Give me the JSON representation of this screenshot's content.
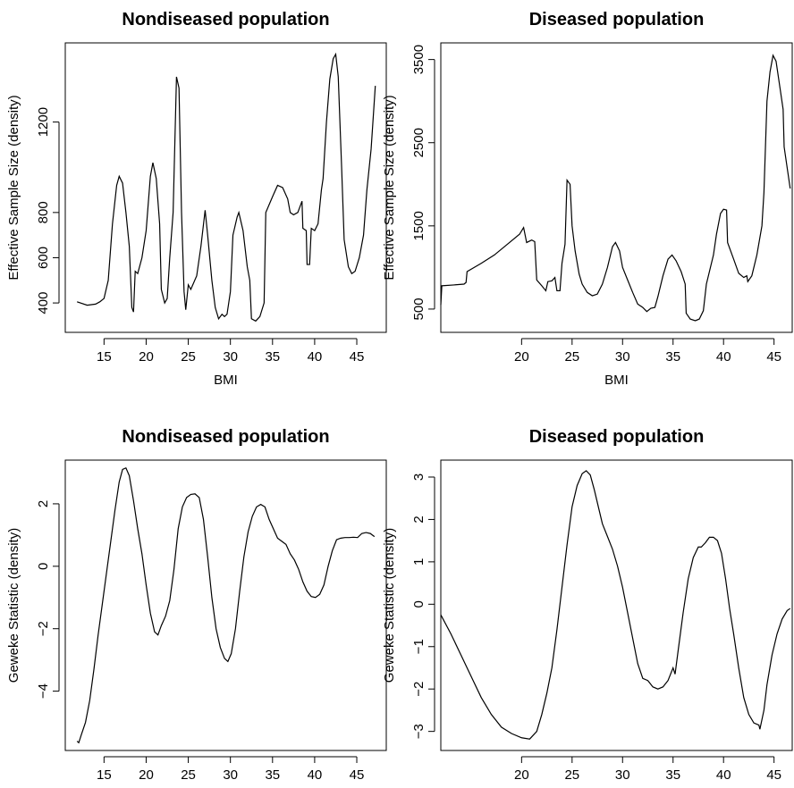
{
  "chart_data": [
    {
      "type": "line",
      "title": "Nondiseased population",
      "xlabel": "BMI",
      "ylabel": "Effective Sample Size (density)",
      "xlim": [
        10.4,
        48.5
      ],
      "ylim": [
        270,
        1550
      ],
      "xticks": [
        15,
        20,
        25,
        30,
        35,
        40,
        45
      ],
      "yticks": [
        400,
        600,
        800,
        1200
      ],
      "x": [
        11.8,
        13,
        14,
        14.5,
        15,
        15.5,
        16,
        16.5,
        16.8,
        17.2,
        17.6,
        18,
        18.3,
        18.5,
        18.7,
        19,
        19.5,
        20,
        20.5,
        20.8,
        21.2,
        21.6,
        21.8,
        22.2,
        22.5,
        22.8,
        23.2,
        23.6,
        23.9,
        24.2,
        24.5,
        24.7,
        25,
        25.3,
        26,
        26.5,
        27,
        27.3,
        27.8,
        28.2,
        28.6,
        29,
        29.3,
        29.6,
        30,
        30.3,
        30.8,
        31,
        31.5,
        32,
        32.3,
        32.5,
        33,
        33.5,
        34,
        34.2,
        35,
        35.6,
        36.2,
        36.8,
        37.1,
        37.5,
        38,
        38.5,
        38.6,
        39,
        39.1,
        39.4,
        39.6,
        40,
        40.4,
        40.8,
        41,
        41.4,
        41.8,
        42.2,
        42.5,
        42.8,
        43.2,
        43.5,
        44,
        44.4,
        44.8,
        45.3,
        45.8,
        46.2,
        46.7,
        47.2
      ],
      "series": [
        {
          "color": "#000000",
          "values": [
            405,
            390,
            395,
            405,
            420,
            500,
            750,
            920,
            960,
            930,
            800,
            650,
            380,
            360,
            540,
            530,
            600,
            720,
            960,
            1020,
            950,
            750,
            460,
            400,
            420,
            600,
            800,
            1400,
            1350,
            800,
            450,
            370,
            480,
            460,
            520,
            650,
            810,
            700,
            500,
            380,
            330,
            350,
            340,
            350,
            450,
            700,
            780,
            800,
            720,
            560,
            500,
            330,
            320,
            340,
            400,
            800,
            870,
            920,
            910,
            860,
            800,
            790,
            800,
            850,
            730,
            720,
            570,
            570,
            730,
            720,
            750,
            900,
            950,
            1200,
            1390,
            1480,
            1500,
            1400,
            1000,
            680,
            560,
            530,
            540,
            600,
            700,
            900,
            1080,
            1360
          ]
        }
      ]
    },
    {
      "type": "line",
      "title": "Diseased population",
      "xlabel": "BMI",
      "ylabel": "Effective Sample Size (density)",
      "xlim": [
        12,
        46.8
      ],
      "ylim": [
        220,
        3700
      ],
      "xticks": [
        20,
        25,
        30,
        35,
        40,
        45
      ],
      "yticks": [
        500,
        1500,
        2500,
        3500
      ],
      "x": [
        12,
        12.1,
        13.3,
        14.3,
        14.5,
        14.6,
        16,
        17.3,
        18.6,
        19.8,
        20.2,
        20.5,
        21,
        21.3,
        21.5,
        22,
        22.4,
        22.6,
        23,
        23.3,
        23.5,
        23.8,
        24,
        24.3,
        24.5,
        24.8,
        25,
        25.3,
        25.7,
        26,
        26.5,
        27,
        27.5,
        28,
        28.5,
        29,
        29.3,
        29.7,
        30,
        30.5,
        31,
        31.5,
        32,
        32.4,
        32.8,
        33.2,
        33.5,
        34,
        34.5,
        34.9,
        35.3,
        35.8,
        36.2,
        36.3,
        36.7,
        37.2,
        37.6,
        38,
        38.3,
        38.6,
        39,
        39.3,
        39.7,
        40,
        40.3,
        40.4,
        41,
        41.5,
        42,
        42.3,
        42.4,
        42.8,
        43.3,
        43.8,
        44,
        44.3,
        44.6,
        44.9,
        45.2,
        45.6,
        45.9,
        46,
        46.3,
        46.6
      ],
      "series": [
        {
          "color": "#000000",
          "values": [
            550,
            780,
            790,
            800,
            820,
            950,
            1050,
            1150,
            1280,
            1400,
            1480,
            1300,
            1330,
            1310,
            850,
            780,
            720,
            830,
            840,
            880,
            720,
            720,
            1050,
            1280,
            2050,
            2000,
            1500,
            1200,
            920,
            800,
            700,
            660,
            680,
            800,
            1000,
            1250,
            1300,
            1200,
            1000,
            850,
            700,
            560,
            520,
            470,
            510,
            520,
            650,
            900,
            1100,
            1150,
            1080,
            950,
            800,
            450,
            380,
            360,
            380,
            480,
            800,
            950,
            1150,
            1400,
            1650,
            1700,
            1690,
            1300,
            1100,
            930,
            880,
            900,
            830,
            900,
            1150,
            1500,
            1900,
            3000,
            3350,
            3550,
            3480,
            3150,
            2900,
            2450,
            2200,
            1950
          ]
        }
      ]
    },
    {
      "type": "line",
      "title": "Nondiseased population",
      "xlabel": "BMI",
      "ylabel": "Geweke Statistic (density)",
      "xlim": [
        10.4,
        48.5
      ],
      "ylim": [
        -5.9,
        3.4
      ],
      "xticks": [
        15,
        20,
        25,
        30,
        35,
        40,
        45
      ],
      "yticks": [
        {
          "value": -4,
          "label": "−4"
        },
        {
          "value": -2,
          "label": "−2"
        },
        0,
        2
      ],
      "x": [
        11.8,
        12,
        12.3,
        12.8,
        13.3,
        13.8,
        14.3,
        14.8,
        15.3,
        15.8,
        16.3,
        16.8,
        17.2,
        17.6,
        18,
        18.5,
        19,
        19.5,
        20,
        20.5,
        21,
        21.4,
        21.8,
        22.3,
        22.8,
        23.3,
        23.8,
        24.3,
        24.8,
        25.3,
        25.8,
        26.3,
        26.8,
        27.3,
        27.8,
        28.3,
        28.8,
        29.3,
        29.7,
        30.1,
        30.6,
        31.1,
        31.6,
        32.1,
        32.6,
        33.1,
        33.6,
        34.1,
        34.6,
        35.1,
        35.6,
        36.1,
        36.6,
        37.1,
        37.6,
        38.1,
        38.6,
        39.1,
        39.6,
        40.1,
        40.6,
        41.1,
        41.6,
        42.1,
        42.6,
        43.1,
        43.6,
        44.1,
        44.6,
        45.1,
        45.6,
        46.1,
        46.6,
        47.1
      ],
      "series": [
        {
          "color": "#000000",
          "values": [
            -5.6,
            -5.65,
            -5.4,
            -5,
            -4.3,
            -3.3,
            -2.2,
            -1.2,
            -0.2,
            0.8,
            1.8,
            2.7,
            3.1,
            3.15,
            2.9,
            2.1,
            1.2,
            0.4,
            -0.6,
            -1.5,
            -2.1,
            -2.2,
            -1.9,
            -1.6,
            -1.1,
            -0.1,
            1.2,
            1.9,
            2.2,
            2.3,
            2.32,
            2.2,
            1.5,
            0.3,
            -1,
            -2,
            -2.6,
            -2.95,
            -3.05,
            -2.8,
            -2,
            -0.8,
            0.3,
            1.1,
            1.6,
            1.9,
            1.98,
            1.9,
            1.5,
            1.2,
            0.9,
            0.8,
            0.7,
            0.4,
            0.2,
            -0.1,
            -0.5,
            -0.8,
            -0.97,
            -1,
            -0.9,
            -0.6,
            0,
            0.5,
            0.85,
            0.9,
            0.92,
            0.92,
            0.93,
            0.92,
            1.05,
            1.08,
            1.05,
            0.95
          ]
        }
      ]
    },
    {
      "type": "line",
      "title": "Diseased population",
      "xlabel": "BMI",
      "ylabel": "Geweke Statistic (density)",
      "xlim": [
        12,
        46.8
      ],
      "ylim": [
        -3.45,
        3.4
      ],
      "xticks": [
        20,
        25,
        30,
        35,
        40,
        45
      ],
      "yticks": [
        {
          "value": -3,
          "label": "−3"
        },
        {
          "value": -2,
          "label": "−2"
        },
        {
          "value": -1,
          "label": "−1"
        },
        0,
        1,
        2,
        3
      ],
      "x": [
        12,
        13,
        14,
        15,
        16,
        17,
        18,
        19,
        20,
        20.8,
        21.5,
        22,
        22.5,
        23,
        23.5,
        24,
        24.5,
        25,
        25.5,
        26,
        26.4,
        26.8,
        27.2,
        27.6,
        28,
        28.5,
        29,
        29.5,
        30,
        30.5,
        31,
        31.5,
        32,
        32.5,
        33,
        33.5,
        34,
        34.5,
        35,
        35.2,
        35.5,
        36,
        36.5,
        37,
        37.5,
        37.8,
        38.2,
        38.6,
        39,
        39.4,
        39.8,
        40.2,
        40.6,
        41,
        41.5,
        42,
        42.5,
        43,
        43.5,
        43.6,
        44,
        44.3,
        44.8,
        45.3,
        45.8,
        46.3,
        46.6
      ],
      "series": [
        {
          "color": "#000000",
          "values": [
            -0.25,
            -0.7,
            -1.2,
            -1.7,
            -2.2,
            -2.6,
            -2.9,
            -3.05,
            -3.15,
            -3.18,
            -3,
            -2.6,
            -2.1,
            -1.5,
            -0.6,
            0.4,
            1.4,
            2.3,
            2.8,
            3.08,
            3.15,
            3.05,
            2.7,
            2.3,
            1.9,
            1.6,
            1.3,
            0.9,
            0.4,
            -0.2,
            -0.8,
            -1.4,
            -1.75,
            -1.8,
            -1.95,
            -2,
            -1.95,
            -1.8,
            -1.5,
            -1.65,
            -1.1,
            -0.2,
            0.6,
            1.1,
            1.35,
            1.35,
            1.45,
            1.58,
            1.58,
            1.5,
            1.2,
            0.6,
            -0.1,
            -0.7,
            -1.5,
            -2.2,
            -2.6,
            -2.8,
            -2.85,
            -2.95,
            -2.5,
            -1.9,
            -1.2,
            -0.7,
            -0.35,
            -0.15,
            -0.1
          ]
        }
      ]
    }
  ]
}
